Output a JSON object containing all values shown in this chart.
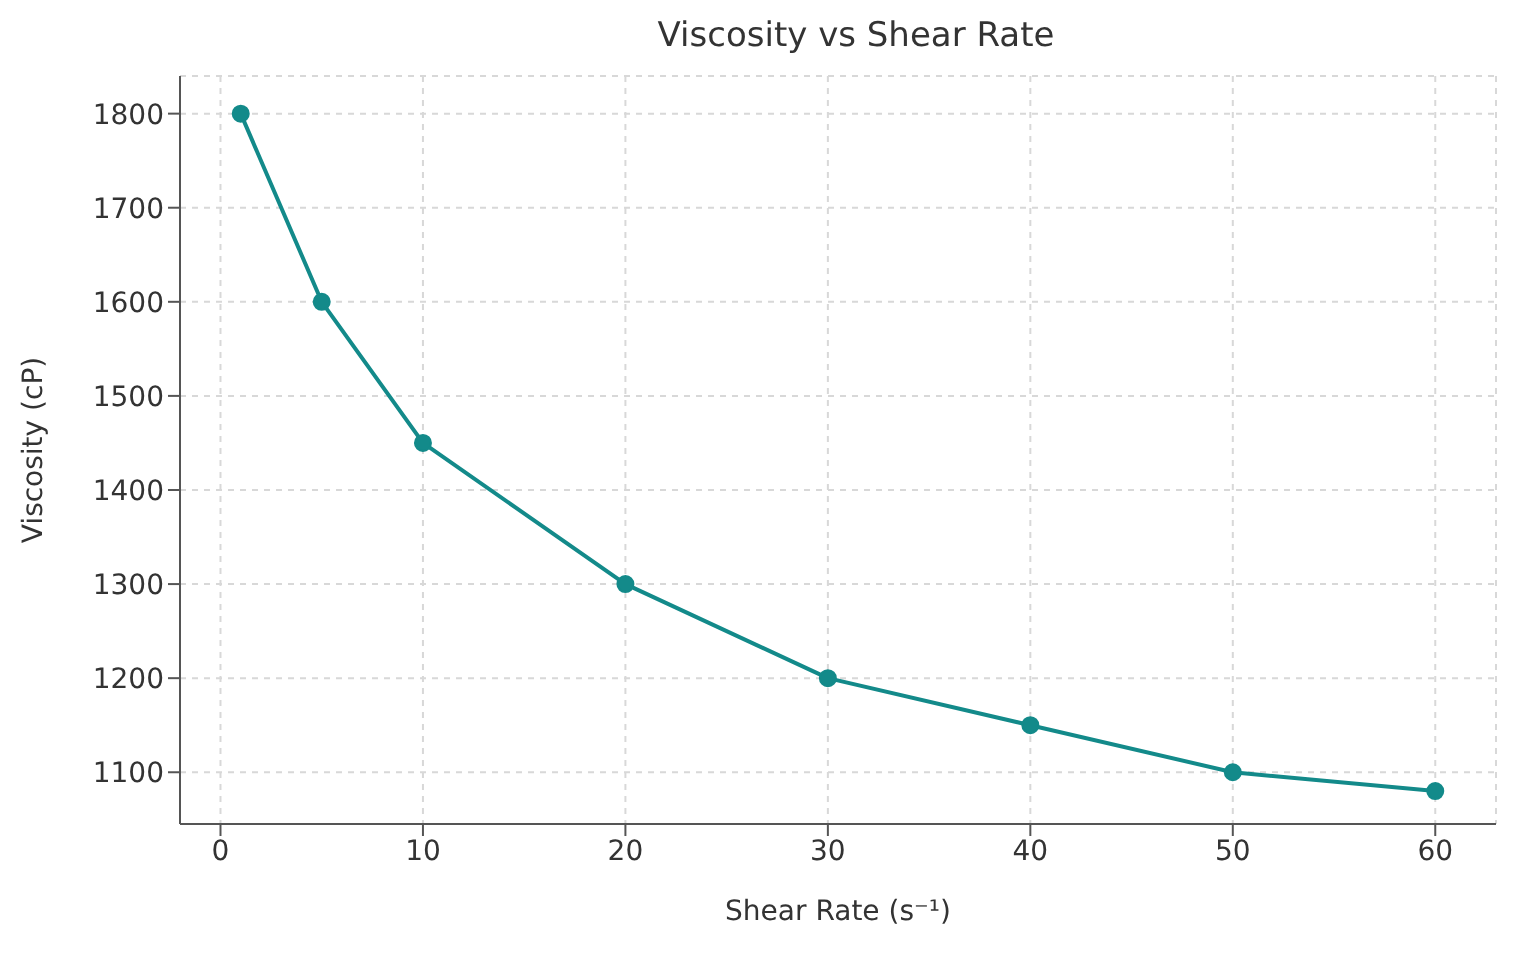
{
  "chart_data": {
    "type": "line",
    "title": "Viscosity vs Shear Rate",
    "xlabel": "Shear Rate (s⁻¹)",
    "ylabel": "Viscosity (cP)",
    "x": [
      1,
      5,
      10,
      20,
      30,
      40,
      50,
      60
    ],
    "series": [
      {
        "color": "#138a8a",
        "values": [
          1800,
          1600,
          1450,
          1300,
          1200,
          1150,
          1100,
          1080
        ]
      }
    ],
    "xlim": [
      -2,
      63
    ],
    "xticks": [
      0,
      10,
      20,
      30,
      40,
      50,
      60
    ],
    "ylim": [
      1045,
      1840
    ],
    "yticks": [
      1100,
      1200,
      1300,
      1400,
      1500,
      1600,
      1700,
      1800
    ],
    "grid": true,
    "marker": "circle",
    "line_style": "solid"
  }
}
